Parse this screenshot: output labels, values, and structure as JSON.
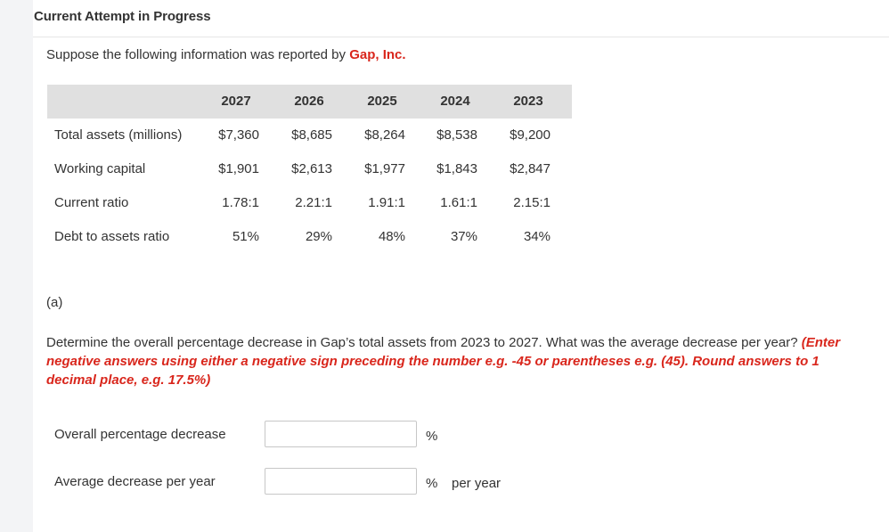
{
  "header": {
    "title": "Current Attempt in Progress"
  },
  "intro": {
    "text": "Suppose the following information was reported by ",
    "company": "Gap, Inc."
  },
  "table": {
    "years": [
      "2027",
      "2026",
      "2025",
      "2024",
      "2023"
    ],
    "rows": [
      {
        "label": "Total assets (millions)",
        "values": [
          "$7,360",
          "$8,685",
          "$8,264",
          "$8,538",
          "$9,200"
        ]
      },
      {
        "label": "Working capital",
        "values": [
          "$1,901",
          "$2,613",
          "$1,977",
          "$1,843",
          "$2,847"
        ]
      },
      {
        "label": "Current ratio",
        "values": [
          "1.78:1",
          "2.21:1",
          "1.91:1",
          "1.61:1",
          "2.15:1"
        ]
      },
      {
        "label": "Debt to assets ratio",
        "values": [
          "51%",
          "29%",
          "48%",
          "37%",
          "34%"
        ]
      }
    ]
  },
  "part": {
    "label": "(a)"
  },
  "question": {
    "text": "Determine the overall percentage decrease in Gap’s total assets from 2023 to 2027. What was the average decrease per year? ",
    "instruction": "(Enter negative answers using either a negative sign preceding the number e.g. -45 or parentheses e.g. (45). Round answers to 1 decimal place, e.g. 17.5%)"
  },
  "answers": {
    "overall": {
      "label": "Overall percentage decrease",
      "value": "",
      "unit": "%"
    },
    "average": {
      "label": "Average decrease per year",
      "value": "",
      "unit": "%",
      "suffix": "per year"
    }
  }
}
